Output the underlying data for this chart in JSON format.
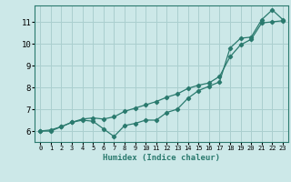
{
  "xlabel": "Humidex (Indice chaleur)",
  "background_color": "#cce8e8",
  "line_color": "#2a7a6e",
  "grid_color": "#aacfcf",
  "xlim": [
    -0.5,
    23.5
  ],
  "ylim": [
    5.5,
    11.75
  ],
  "yticks": [
    6,
    7,
    8,
    9,
    10,
    11
  ],
  "xticks": [
    0,
    1,
    2,
    3,
    4,
    5,
    6,
    7,
    8,
    9,
    10,
    11,
    12,
    13,
    14,
    15,
    16,
    17,
    18,
    19,
    20,
    21,
    22,
    23
  ],
  "series1_x": [
    0,
    1,
    2,
    3,
    4,
    5,
    6,
    7,
    8,
    9,
    10,
    11,
    12,
    13,
    14,
    15,
    16,
    17,
    18,
    19,
    20,
    21,
    22,
    23
  ],
  "series1_y": [
    6.0,
    6.0,
    6.2,
    6.4,
    6.5,
    6.45,
    6.1,
    5.75,
    6.25,
    6.35,
    6.5,
    6.5,
    6.85,
    7.0,
    7.5,
    7.85,
    8.05,
    8.25,
    9.8,
    10.25,
    10.3,
    11.1,
    11.55,
    11.1
  ],
  "series2_x": [
    0,
    1,
    2,
    3,
    4,
    5,
    6,
    7,
    8,
    9,
    10,
    11,
    12,
    13,
    14,
    15,
    16,
    17,
    18,
    19,
    20,
    21,
    22,
    23
  ],
  "series2_y": [
    6.0,
    6.05,
    6.2,
    6.4,
    6.55,
    6.6,
    6.55,
    6.65,
    6.9,
    7.05,
    7.2,
    7.35,
    7.55,
    7.7,
    7.95,
    8.1,
    8.2,
    8.5,
    9.4,
    9.95,
    10.2,
    10.95,
    11.0,
    11.05
  ]
}
